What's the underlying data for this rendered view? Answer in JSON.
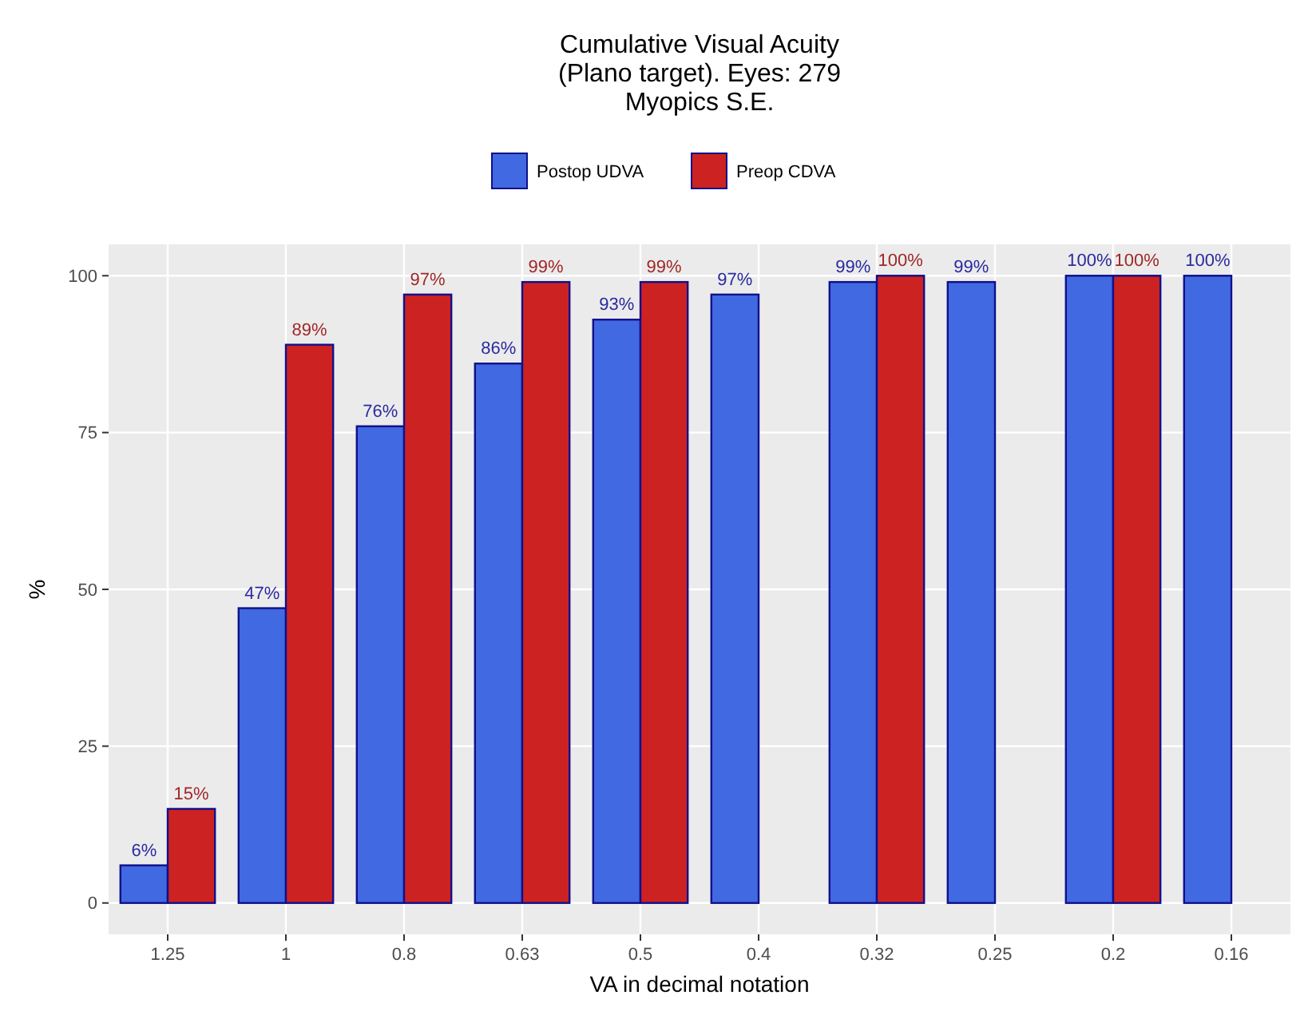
{
  "chart_data": {
    "type": "bar",
    "title": "Cumulative Visual Acuity\n(Plano target). Eyes: 279\nMyopics S.E.",
    "xlabel": "VA in decimal notation",
    "ylabel": "%",
    "categories": [
      "1.25",
      "1",
      "0.8",
      "0.63",
      "0.5",
      "0.4",
      "0.32",
      "0.25",
      "0.2",
      "0.16"
    ],
    "series": [
      {
        "name": "Postop UDVA",
        "color": "#4169e1",
        "values": [
          6,
          47,
          76,
          86,
          93,
          97,
          99,
          99,
          100,
          100
        ],
        "value_labels": [
          "6%",
          "47%",
          "76%",
          "86%",
          "93%",
          "97%",
          "99%",
          "99%",
          "100%",
          "100%"
        ]
      },
      {
        "name": "Preop CDVA",
        "color": "#cc2222",
        "values": [
          15,
          89,
          97,
          99,
          99,
          null,
          100,
          null,
          100,
          null
        ],
        "value_labels": [
          "15%",
          "89%",
          "97%",
          "99%",
          "99%",
          null,
          "100%",
          null,
          "100%",
          null
        ]
      }
    ],
    "ylim": [
      -5,
      105
    ],
    "yticks": [
      0,
      25,
      50,
      75,
      100
    ],
    "grid": true,
    "legend": "top"
  }
}
